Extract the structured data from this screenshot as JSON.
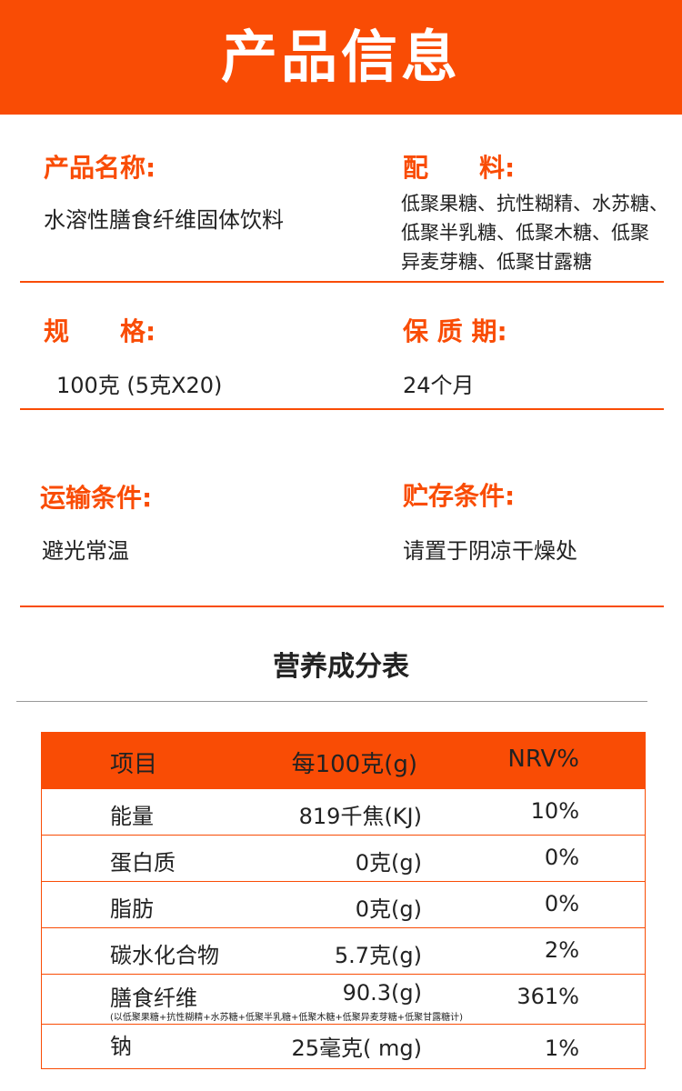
{
  "header": {
    "title": "产品信息",
    "color": "#f94c05"
  },
  "info": {
    "name_label": "产品名称:",
    "name_value": "水溶性膳食纤维固体饮料",
    "ingredients_label": "配　　料:",
    "ingredients_lines": [
      "低聚果糖、抗性糊精、水苏糖、",
      "低聚半乳糖、低聚木糖、低聚",
      "异麦芽糖、低聚甘露糖"
    ],
    "spec_label": "规　　格:",
    "spec_value": "100克 (5克X20)",
    "shelf_label": "保 质 期:",
    "shelf_value": "24个月",
    "transport_label": "运输条件:",
    "transport_value": "避光常温",
    "storage_label": "贮存条件:",
    "storage_value": "请置于阴凉干燥处"
  },
  "nutrition": {
    "title": "营养成分表",
    "headers": [
      "项目",
      "每100克(g)",
      "NRV%"
    ],
    "rows": [
      {
        "item": "能量",
        "amount": "819千焦(KJ)",
        "nrv": "10%"
      },
      {
        "item": "蛋白质",
        "amount": "0克(g)",
        "nrv": "0%"
      },
      {
        "item": "脂肪",
        "amount": "0克(g)",
        "nrv": "0%"
      },
      {
        "item": "碳水化合物",
        "amount": "5.7克(g)",
        "nrv": "2%"
      },
      {
        "item": "膳食纤维",
        "amount": "90.3(g)",
        "nrv": "361%",
        "note": "(以低聚果糖+抗性糊精+水苏糖+低聚半乳糖+低聚木糖+低聚异麦芽糖+低聚甘露糖计)"
      },
      {
        "item": "钠",
        "amount": "25毫克( mg)",
        "nrv": "1%"
      }
    ]
  }
}
